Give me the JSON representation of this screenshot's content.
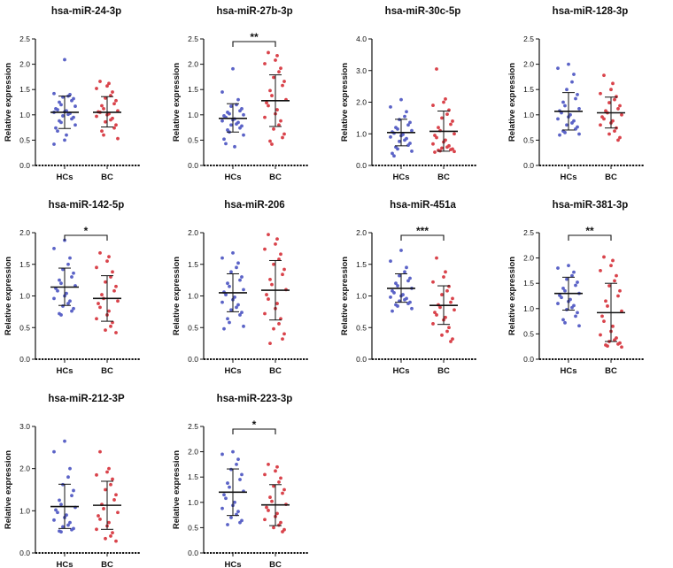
{
  "chart_data": [
    {
      "type": "scatter",
      "title": "hsa-miR-24-3p",
      "ylabel": "Relative expression",
      "categories": [
        "HCs",
        "BC"
      ],
      "ylim": [
        0,
        2.5
      ],
      "yticks": [
        "0.0",
        "0.5",
        "1.0",
        "1.5",
        "2.0",
        "2.5"
      ],
      "significance": "",
      "series": [
        {
          "name": "HCs",
          "color": "#5b63c7",
          "mean": 1.05,
          "sd_low": 0.73,
          "sd_high": 1.37,
          "values": [
            2.09,
            1.42,
            1.4,
            1.37,
            1.35,
            1.32,
            1.28,
            1.25,
            1.2,
            1.17,
            1.12,
            1.1,
            1.08,
            1.06,
            1.05,
            1.03,
            1.01,
            0.98,
            0.95,
            0.92,
            0.88,
            0.85,
            0.8,
            0.74,
            0.68,
            0.6,
            0.5,
            0.42
          ]
        },
        {
          "name": "BC",
          "color": "#d9434b",
          "mean": 1.05,
          "sd_low": 0.76,
          "sd_high": 1.36,
          "values": [
            1.66,
            1.62,
            1.57,
            1.52,
            1.45,
            1.38,
            1.33,
            1.28,
            1.22,
            1.18,
            1.12,
            1.08,
            1.06,
            1.05,
            1.02,
            1.0,
            0.97,
            0.93,
            0.9,
            0.86,
            0.8,
            0.74,
            0.68,
            0.6,
            0.53
          ]
        }
      ]
    },
    {
      "type": "scatter",
      "title": "hsa-miR-27b-3p",
      "ylabel": "Relative expression",
      "categories": [
        "HCs",
        "BC"
      ],
      "ylim": [
        0,
        2.5
      ],
      "yticks": [
        "0.0",
        "0.5",
        "1.0",
        "1.5",
        "2.0",
        "2.5"
      ],
      "significance": "**",
      "series": [
        {
          "name": "HCs",
          "color": "#5b63c7",
          "mean": 0.93,
          "sd_low": 0.66,
          "sd_high": 1.22,
          "values": [
            1.91,
            1.45,
            1.3,
            1.2,
            1.17,
            1.12,
            1.08,
            1.05,
            1.02,
            1.0,
            0.98,
            0.95,
            0.92,
            0.9,
            0.88,
            0.85,
            0.82,
            0.8,
            0.78,
            0.74,
            0.7,
            0.66,
            0.6,
            0.52,
            0.43,
            0.37
          ]
        },
        {
          "name": "BC",
          "color": "#d9434b",
          "mean": 1.28,
          "sd_low": 0.77,
          "sd_high": 1.79,
          "values": [
            2.23,
            2.17,
            2.08,
            2.01,
            1.92,
            1.85,
            1.74,
            1.66,
            1.58,
            1.48,
            1.38,
            1.3,
            1.24,
            1.18,
            1.1,
            1.02,
            0.95,
            0.88,
            0.8,
            0.72,
            0.62,
            0.55,
            0.48,
            0.42
          ]
        }
      ]
    },
    {
      "type": "scatter",
      "title": "hsa-miR-30c-5p",
      "ylabel": "Relative expression",
      "categories": [
        "HCs",
        "BC"
      ],
      "ylim": [
        0,
        4
      ],
      "yticks": [
        "0.0",
        "1.0",
        "2.0",
        "3.0",
        "4.0"
      ],
      "significance": "",
      "series": [
        {
          "name": "HCs",
          "color": "#5b63c7",
          "mean": 1.04,
          "sd_low": 0.62,
          "sd_high": 1.46,
          "values": [
            2.08,
            1.85,
            1.7,
            1.55,
            1.45,
            1.36,
            1.28,
            1.2,
            1.15,
            1.1,
            1.06,
            1.02,
            0.98,
            0.94,
            0.9,
            0.85,
            0.8,
            0.76,
            0.7,
            0.64,
            0.58,
            0.52,
            0.45,
            0.38,
            0.3
          ]
        },
        {
          "name": "BC",
          "color": "#d9434b",
          "mean": 1.08,
          "sd_low": 0.45,
          "sd_high": 1.72,
          "values": [
            3.05,
            2.1,
            2.0,
            1.9,
            1.75,
            1.62,
            1.5,
            1.4,
            1.3,
            1.2,
            1.1,
            1.0,
            0.95,
            0.88,
            0.8,
            0.74,
            0.68,
            0.62,
            0.58,
            0.55,
            0.52,
            0.5,
            0.48,
            0.46,
            0.44,
            0.42
          ]
        }
      ]
    },
    {
      "type": "scatter",
      "title": "hsa-miR-128-3p",
      "ylabel": "Relative expression",
      "categories": [
        "HCs",
        "BC"
      ],
      "ylim": [
        0,
        2.5
      ],
      "yticks": [
        "0.0",
        "0.5",
        "1.0",
        "1.5",
        "2.0",
        "2.5"
      ],
      "significance": "",
      "series": [
        {
          "name": "HCs",
          "color": "#5b63c7",
          "mean": 1.07,
          "sd_low": 0.7,
          "sd_high": 1.44,
          "values": [
            2.0,
            1.92,
            1.8,
            1.65,
            1.5,
            1.4,
            1.32,
            1.25,
            1.18,
            1.12,
            1.08,
            1.04,
            1.0,
            0.96,
            0.92,
            0.88,
            0.84,
            0.8,
            0.76,
            0.72,
            0.68,
            0.65,
            0.62,
            0.6
          ]
        },
        {
          "name": "BC",
          "color": "#d9434b",
          "mean": 1.04,
          "sd_low": 0.74,
          "sd_high": 1.35,
          "values": [
            1.78,
            1.62,
            1.5,
            1.42,
            1.36,
            1.3,
            1.24,
            1.18,
            1.12,
            1.08,
            1.04,
            1.0,
            0.96,
            0.92,
            0.88,
            0.84,
            0.8,
            0.74,
            0.68,
            0.62,
            0.55,
            0.5
          ]
        }
      ]
    },
    {
      "type": "scatter",
      "title": "hsa-miR-142-5p",
      "ylabel": "Relative expression",
      "categories": [
        "HCs",
        "BC"
      ],
      "ylim": [
        0,
        2
      ],
      "yticks": [
        "0.0",
        "0.5",
        "1.0",
        "1.5",
        "2.0"
      ],
      "significance": "*",
      "series": [
        {
          "name": "HCs",
          "color": "#5b63c7",
          "mean": 1.14,
          "sd_low": 0.85,
          "sd_high": 1.44,
          "values": [
            1.88,
            1.75,
            1.6,
            1.5,
            1.42,
            1.36,
            1.3,
            1.25,
            1.2,
            1.16,
            1.12,
            1.08,
            1.04,
            1.0,
            0.96,
            0.92,
            0.88,
            0.84,
            0.8,
            0.76,
            0.72,
            0.7
          ]
        },
        {
          "name": "BC",
          "color": "#d9434b",
          "mean": 0.96,
          "sd_low": 0.6,
          "sd_high": 1.32,
          "values": [
            1.68,
            1.62,
            1.55,
            1.45,
            1.38,
            1.3,
            1.22,
            1.15,
            1.08,
            1.02,
            0.96,
            0.92,
            0.88,
            0.82,
            0.76,
            0.7,
            0.64,
            0.58,
            0.52,
            0.46,
            0.42
          ]
        }
      ]
    },
    {
      "type": "scatter",
      "title": "hsa-miR-206",
      "ylabel": "Relative expression",
      "categories": [
        "HCs",
        "BC"
      ],
      "ylim": [
        0,
        2
      ],
      "yticks": [
        "0.0",
        "0.5",
        "1.0",
        "1.5",
        "2.0"
      ],
      "significance": "",
      "series": [
        {
          "name": "HCs",
          "color": "#5b63c7",
          "mean": 1.05,
          "sd_low": 0.75,
          "sd_high": 1.35,
          "values": [
            1.68,
            1.6,
            1.52,
            1.45,
            1.38,
            1.3,
            1.25,
            1.2,
            1.15,
            1.1,
            1.06,
            1.02,
            0.98,
            0.94,
            0.9,
            0.86,
            0.82,
            0.78,
            0.74,
            0.7,
            0.64,
            0.58,
            0.52,
            0.48
          ]
        },
        {
          "name": "BC",
          "color": "#d9434b",
          "mean": 1.09,
          "sd_low": 0.62,
          "sd_high": 1.56,
          "values": [
            1.97,
            1.9,
            1.82,
            1.74,
            1.66,
            1.58,
            1.5,
            1.42,
            1.34,
            1.26,
            1.18,
            1.1,
            1.02,
            0.95,
            0.88,
            0.8,
            0.72,
            0.64,
            0.56,
            0.48,
            0.4,
            0.32,
            0.25
          ]
        }
      ]
    },
    {
      "type": "scatter",
      "title": "hsa-miR-451a",
      "ylabel": "Relative expression",
      "categories": [
        "HCs",
        "BC"
      ],
      "ylim": [
        0,
        2
      ],
      "yticks": [
        "0.0",
        "0.5",
        "1.0",
        "1.5",
        "2.0"
      ],
      "significance": "***",
      "series": [
        {
          "name": "HCs",
          "color": "#5b63c7",
          "mean": 1.12,
          "sd_low": 0.9,
          "sd_high": 1.35,
          "values": [
            1.72,
            1.55,
            1.45,
            1.38,
            1.32,
            1.28,
            1.24,
            1.2,
            1.16,
            1.12,
            1.08,
            1.05,
            1.02,
            1.0,
            0.98,
            0.96,
            0.94,
            0.92,
            0.9,
            0.88,
            0.86,
            0.84,
            0.8,
            0.76
          ]
        },
        {
          "name": "BC",
          "color": "#d9434b",
          "mean": 0.85,
          "sd_low": 0.55,
          "sd_high": 1.16,
          "values": [
            1.6,
            1.38,
            1.3,
            1.22,
            1.15,
            1.08,
            1.02,
            0.96,
            0.9,
            0.86,
            0.82,
            0.78,
            0.74,
            0.7,
            0.66,
            0.62,
            0.56,
            0.5,
            0.44,
            0.38,
            0.32,
            0.28
          ]
        }
      ]
    },
    {
      "type": "scatter",
      "title": "hsa-miR-381-3p",
      "ylabel": "Relative expression",
      "categories": [
        "HCs",
        "BC"
      ],
      "ylim": [
        0,
        2.5
      ],
      "yticks": [
        "0.0",
        "0.5",
        "1.0",
        "1.5",
        "2.0",
        "2.5"
      ],
      "significance": "**",
      "series": [
        {
          "name": "HCs",
          "color": "#5b63c7",
          "mean": 1.3,
          "sd_low": 0.97,
          "sd_high": 1.62,
          "values": [
            1.85,
            1.8,
            1.72,
            1.65,
            1.58,
            1.52,
            1.46,
            1.4,
            1.35,
            1.3,
            1.26,
            1.22,
            1.18,
            1.14,
            1.1,
            1.06,
            1.02,
            0.98,
            0.92,
            0.85,
            0.78,
            0.72,
            0.66
          ]
        },
        {
          "name": "BC",
          "color": "#d9434b",
          "mean": 0.92,
          "sd_low": 0.35,
          "sd_high": 1.5,
          "values": [
            2.02,
            1.95,
            1.85,
            1.75,
            1.65,
            1.55,
            1.45,
            1.35,
            1.25,
            1.15,
            1.05,
            0.95,
            0.85,
            0.75,
            0.65,
            0.55,
            0.48,
            0.42,
            0.38,
            0.35,
            0.32,
            0.3,
            0.28,
            0.26,
            0.24
          ]
        }
      ]
    },
    {
      "type": "scatter",
      "title": "hsa-miR-212-3P",
      "ylabel": "Relative expression",
      "categories": [
        "HCs",
        "BC"
      ],
      "ylim": [
        0,
        3
      ],
      "yticks": [
        "0.0",
        "1.0",
        "2.0",
        "3.0"
      ],
      "significance": "",
      "series": [
        {
          "name": "HCs",
          "color": "#5b63c7",
          "mean": 1.1,
          "sd_low": 0.58,
          "sd_high": 1.63,
          "values": [
            2.65,
            2.4,
            2.0,
            1.8,
            1.62,
            1.48,
            1.36,
            1.25,
            1.15,
            1.08,
            1.02,
            0.96,
            0.9,
            0.84,
            0.78,
            0.72,
            0.66,
            0.62,
            0.58,
            0.55,
            0.52,
            0.5
          ]
        },
        {
          "name": "BC",
          "color": "#d9434b",
          "mean": 1.13,
          "sd_low": 0.56,
          "sd_high": 1.7,
          "values": [
            2.4,
            2.0,
            1.92,
            1.85,
            1.75,
            1.62,
            1.5,
            1.38,
            1.26,
            1.15,
            1.05,
            0.96,
            0.88,
            0.8,
            0.72,
            0.64,
            0.56,
            0.48,
            0.4,
            0.34,
            0.28
          ]
        }
      ]
    },
    {
      "type": "scatter",
      "title": "hsa-miR-223-3p",
      "ylabel": "Relative expression",
      "categories": [
        "HCs",
        "BC"
      ],
      "ylim": [
        0,
        2.5
      ],
      "yticks": [
        "0.0",
        "0.5",
        "1.0",
        "1.5",
        "2.0",
        "2.5"
      ],
      "significance": "*",
      "series": [
        {
          "name": "HCs",
          "color": "#5b63c7",
          "mean": 1.2,
          "sd_low": 0.74,
          "sd_high": 1.66,
          "values": [
            2.0,
            1.95,
            1.85,
            1.75,
            1.65,
            1.55,
            1.45,
            1.38,
            1.3,
            1.22,
            1.15,
            1.08,
            1.0,
            0.94,
            0.88,
            0.82,
            0.76,
            0.7,
            0.64,
            0.6,
            0.56
          ]
        },
        {
          "name": "BC",
          "color": "#d9434b",
          "mean": 0.95,
          "sd_low": 0.54,
          "sd_high": 1.35,
          "values": [
            1.75,
            1.7,
            1.62,
            1.55,
            1.48,
            1.4,
            1.32,
            1.25,
            1.18,
            1.1,
            1.02,
            0.96,
            0.9,
            0.84,
            0.78,
            0.72,
            0.66,
            0.6,
            0.55,
            0.5,
            0.46,
            0.42
          ]
        }
      ]
    }
  ]
}
